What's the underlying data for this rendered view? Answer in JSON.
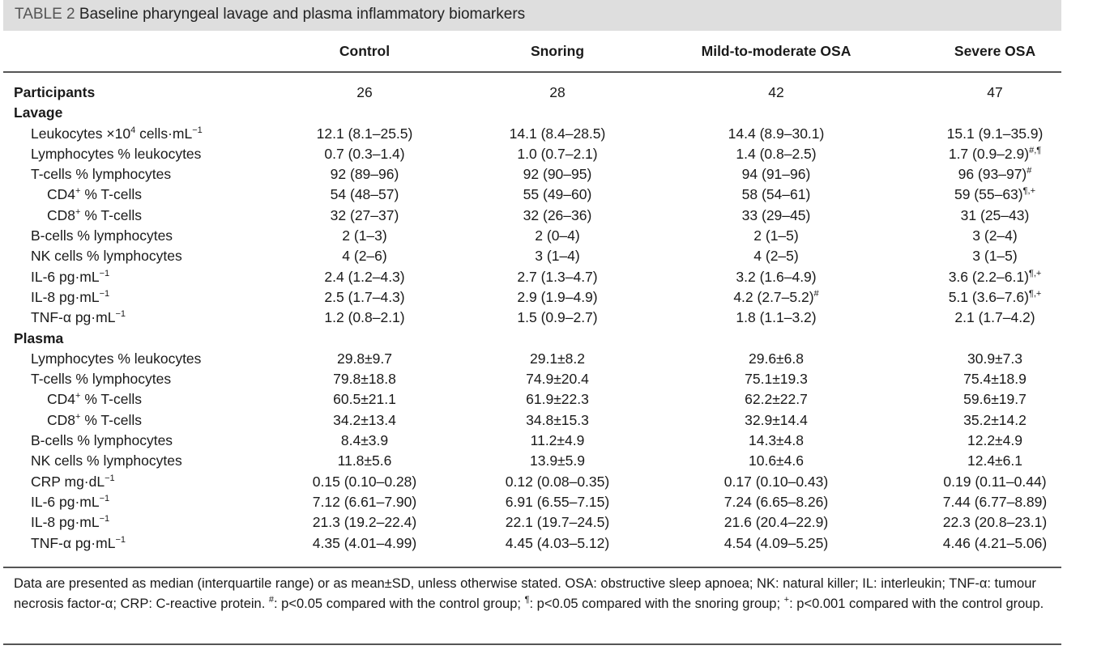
{
  "title": {
    "label": "TABLE 2",
    "text": "Baseline pharyngeal lavage and plasma inflammatory biomarkers"
  },
  "columns": [
    "Control",
    "Snoring",
    "Mild-to-moderate OSA",
    "Severe OSA"
  ],
  "rows": [
    {
      "label": "Participants",
      "type": "bold",
      "indent": 0,
      "values": [
        {
          "v": "26"
        },
        {
          "v": "28"
        },
        {
          "v": "42"
        },
        {
          "v": "47"
        }
      ]
    },
    {
      "label": "Lavage",
      "type": "bold",
      "indent": 0,
      "values": []
    },
    {
      "label": "Leukocytes ×10",
      "sup": "4",
      "post": " cells·mL",
      "sup2": "−1",
      "indent": 1,
      "values": [
        {
          "v": "12.1 (8.1–25.5)"
        },
        {
          "v": "14.1 (8.4–28.5)"
        },
        {
          "v": "14.4 (8.9–30.1)"
        },
        {
          "v": "15.1 (9.1–35.9)"
        }
      ]
    },
    {
      "label": "Lymphocytes % leukocytes",
      "indent": 1,
      "values": [
        {
          "v": "0.7 (0.3–1.4)"
        },
        {
          "v": "1.0 (0.7–2.1)"
        },
        {
          "v": "1.4 (0.8–2.5)"
        },
        {
          "v": "1.7 (0.9–2.9)",
          "sup": "#,¶"
        }
      ]
    },
    {
      "label": "T-cells % lymphocytes",
      "indent": 1,
      "values": [
        {
          "v": "92 (89–96)"
        },
        {
          "v": "92 (90–95)"
        },
        {
          "v": "94 (91–96)"
        },
        {
          "v": "96 (93–97)",
          "sup": "#"
        }
      ]
    },
    {
      "label": "CD4",
      "sup": "+",
      "post": " % T-cells",
      "indent": 2,
      "values": [
        {
          "v": "54 (48–57)"
        },
        {
          "v": "55 (49–60)"
        },
        {
          "v": "58 (54–61)"
        },
        {
          "v": "59 (55–63)",
          "sup": "¶,+"
        }
      ]
    },
    {
      "label": "CD8",
      "sup": "+",
      "post": " % T-cells",
      "indent": 2,
      "values": [
        {
          "v": "32 (27–37)"
        },
        {
          "v": "32 (26–36)"
        },
        {
          "v": "33 (29–45)"
        },
        {
          "v": "31 (25–43)"
        }
      ]
    },
    {
      "label": "B-cells % lymphocytes",
      "indent": 1,
      "values": [
        {
          "v": "2 (1–3)"
        },
        {
          "v": "2 (0–4)"
        },
        {
          "v": "2 (1–5)"
        },
        {
          "v": "3 (2–4)"
        }
      ]
    },
    {
      "label": "NK cells % lymphocytes",
      "indent": 1,
      "values": [
        {
          "v": "4 (2–6)"
        },
        {
          "v": "3 (1–4)"
        },
        {
          "v": "4 (2–5)"
        },
        {
          "v": "3 (1–5)"
        }
      ]
    },
    {
      "label": "IL-6 pg·mL",
      "sup": "−1",
      "indent": 1,
      "values": [
        {
          "v": "2.4 (1.2–4.3)"
        },
        {
          "v": "2.7 (1.3–4.7)"
        },
        {
          "v": "3.2 (1.6–4.9)"
        },
        {
          "v": "3.6 (2.2–6.1)",
          "sup": "¶,+"
        }
      ]
    },
    {
      "label": "IL-8 pg·mL",
      "sup": "−1",
      "indent": 1,
      "values": [
        {
          "v": "2.5 (1.7–4.3)"
        },
        {
          "v": "2.9 (1.9–4.9)"
        },
        {
          "v": "4.2 (2.7–5.2)",
          "sup": "#"
        },
        {
          "v": "5.1 (3.6–7.6)",
          "sup": "¶,+"
        }
      ]
    },
    {
      "label": "TNF-α pg·mL",
      "sup": "−1",
      "indent": 1,
      "values": [
        {
          "v": "1.2 (0.8–2.1)"
        },
        {
          "v": "1.5 (0.9–2.7)"
        },
        {
          "v": "1.8 (1.1–3.2)"
        },
        {
          "v": "2.1 (1.7–4.2)"
        }
      ]
    },
    {
      "label": "Plasma",
      "type": "bold",
      "indent": 0,
      "values": []
    },
    {
      "label": "Lymphocytes % leukocytes",
      "indent": 1,
      "values": [
        {
          "v": "29.8±9.7"
        },
        {
          "v": "29.1±8.2"
        },
        {
          "v": "29.6±6.8"
        },
        {
          "v": "30.9±7.3"
        }
      ]
    },
    {
      "label": "T-cells % lymphocytes",
      "indent": 1,
      "values": [
        {
          "v": "79.8±18.8"
        },
        {
          "v": "74.9±20.4"
        },
        {
          "v": "75.1±19.3"
        },
        {
          "v": "75.4±18.9"
        }
      ]
    },
    {
      "label": "CD4",
      "sup": "+",
      "post": " % T-cells",
      "indent": 2,
      "values": [
        {
          "v": "60.5±21.1"
        },
        {
          "v": "61.9±22.3"
        },
        {
          "v": "62.2±22.7"
        },
        {
          "v": "59.6±19.7"
        }
      ]
    },
    {
      "label": "CD8",
      "sup": "+",
      "post": " % T-cells",
      "indent": 2,
      "values": [
        {
          "v": "34.2±13.4"
        },
        {
          "v": "34.8±15.3"
        },
        {
          "v": "32.9±14.4"
        },
        {
          "v": "35.2±14.2"
        }
      ]
    },
    {
      "label": "B-cells % lymphocytes",
      "indent": 1,
      "values": [
        {
          "v": "8.4±3.9"
        },
        {
          "v": "11.2±4.9"
        },
        {
          "v": "14.3±4.8"
        },
        {
          "v": "12.2±4.9"
        }
      ]
    },
    {
      "label": "NK cells % lymphocytes",
      "indent": 1,
      "values": [
        {
          "v": "11.8±5.6"
        },
        {
          "v": "13.9±5.9"
        },
        {
          "v": "10.6±4.6"
        },
        {
          "v": "12.4±6.1"
        }
      ]
    },
    {
      "label": "CRP mg·dL",
      "sup": "−1",
      "indent": 1,
      "values": [
        {
          "v": "0.15 (0.10–0.28)"
        },
        {
          "v": "0.12 (0.08–0.35)"
        },
        {
          "v": "0.17 (0.10–0.43)"
        },
        {
          "v": "0.19 (0.11–0.44)"
        }
      ]
    },
    {
      "label": "IL-6 pg·mL",
      "sup": "−1",
      "indent": 1,
      "values": [
        {
          "v": "7.12 (6.61–7.90)"
        },
        {
          "v": "6.91 (6.55–7.15)"
        },
        {
          "v": "7.24 (6.65–8.26)"
        },
        {
          "v": "7.44 (6.77–8.89)"
        }
      ]
    },
    {
      "label": "IL-8 pg·mL",
      "sup": "−1",
      "indent": 1,
      "values": [
        {
          "v": "21.3 (19.2–22.4)"
        },
        {
          "v": "22.1 (19.7–24.5)"
        },
        {
          "v": "21.6 (20.4–22.9)"
        },
        {
          "v": "22.3 (20.8–23.1)"
        }
      ]
    },
    {
      "label": "TNF-α pg·mL",
      "sup": "−1",
      "indent": 1,
      "values": [
        {
          "v": "4.35 (4.01–4.99)"
        },
        {
          "v": "4.45 (4.03–5.12)"
        },
        {
          "v": "4.54 (4.09–5.25)"
        },
        {
          "v": "4.46 (4.21–5.06)"
        }
      ]
    }
  ],
  "footnote": {
    "p1": "Data are presented as median (interquartile range) or as mean±SD, unless otherwise stated. OSA: obstructive sleep apnoea; NK: natural killer; IL: interleukin; TNF-α: tumour necrosis factor-α; CRP: C-reactive protein. ",
    "s1": "#",
    "p2": ": p<0.05 compared with the control group; ",
    "s2": "¶",
    "p3": ": p<0.05 compared with the snoring group; ",
    "s3": "+",
    "p4": ": p<0.001 compared with the control group."
  }
}
